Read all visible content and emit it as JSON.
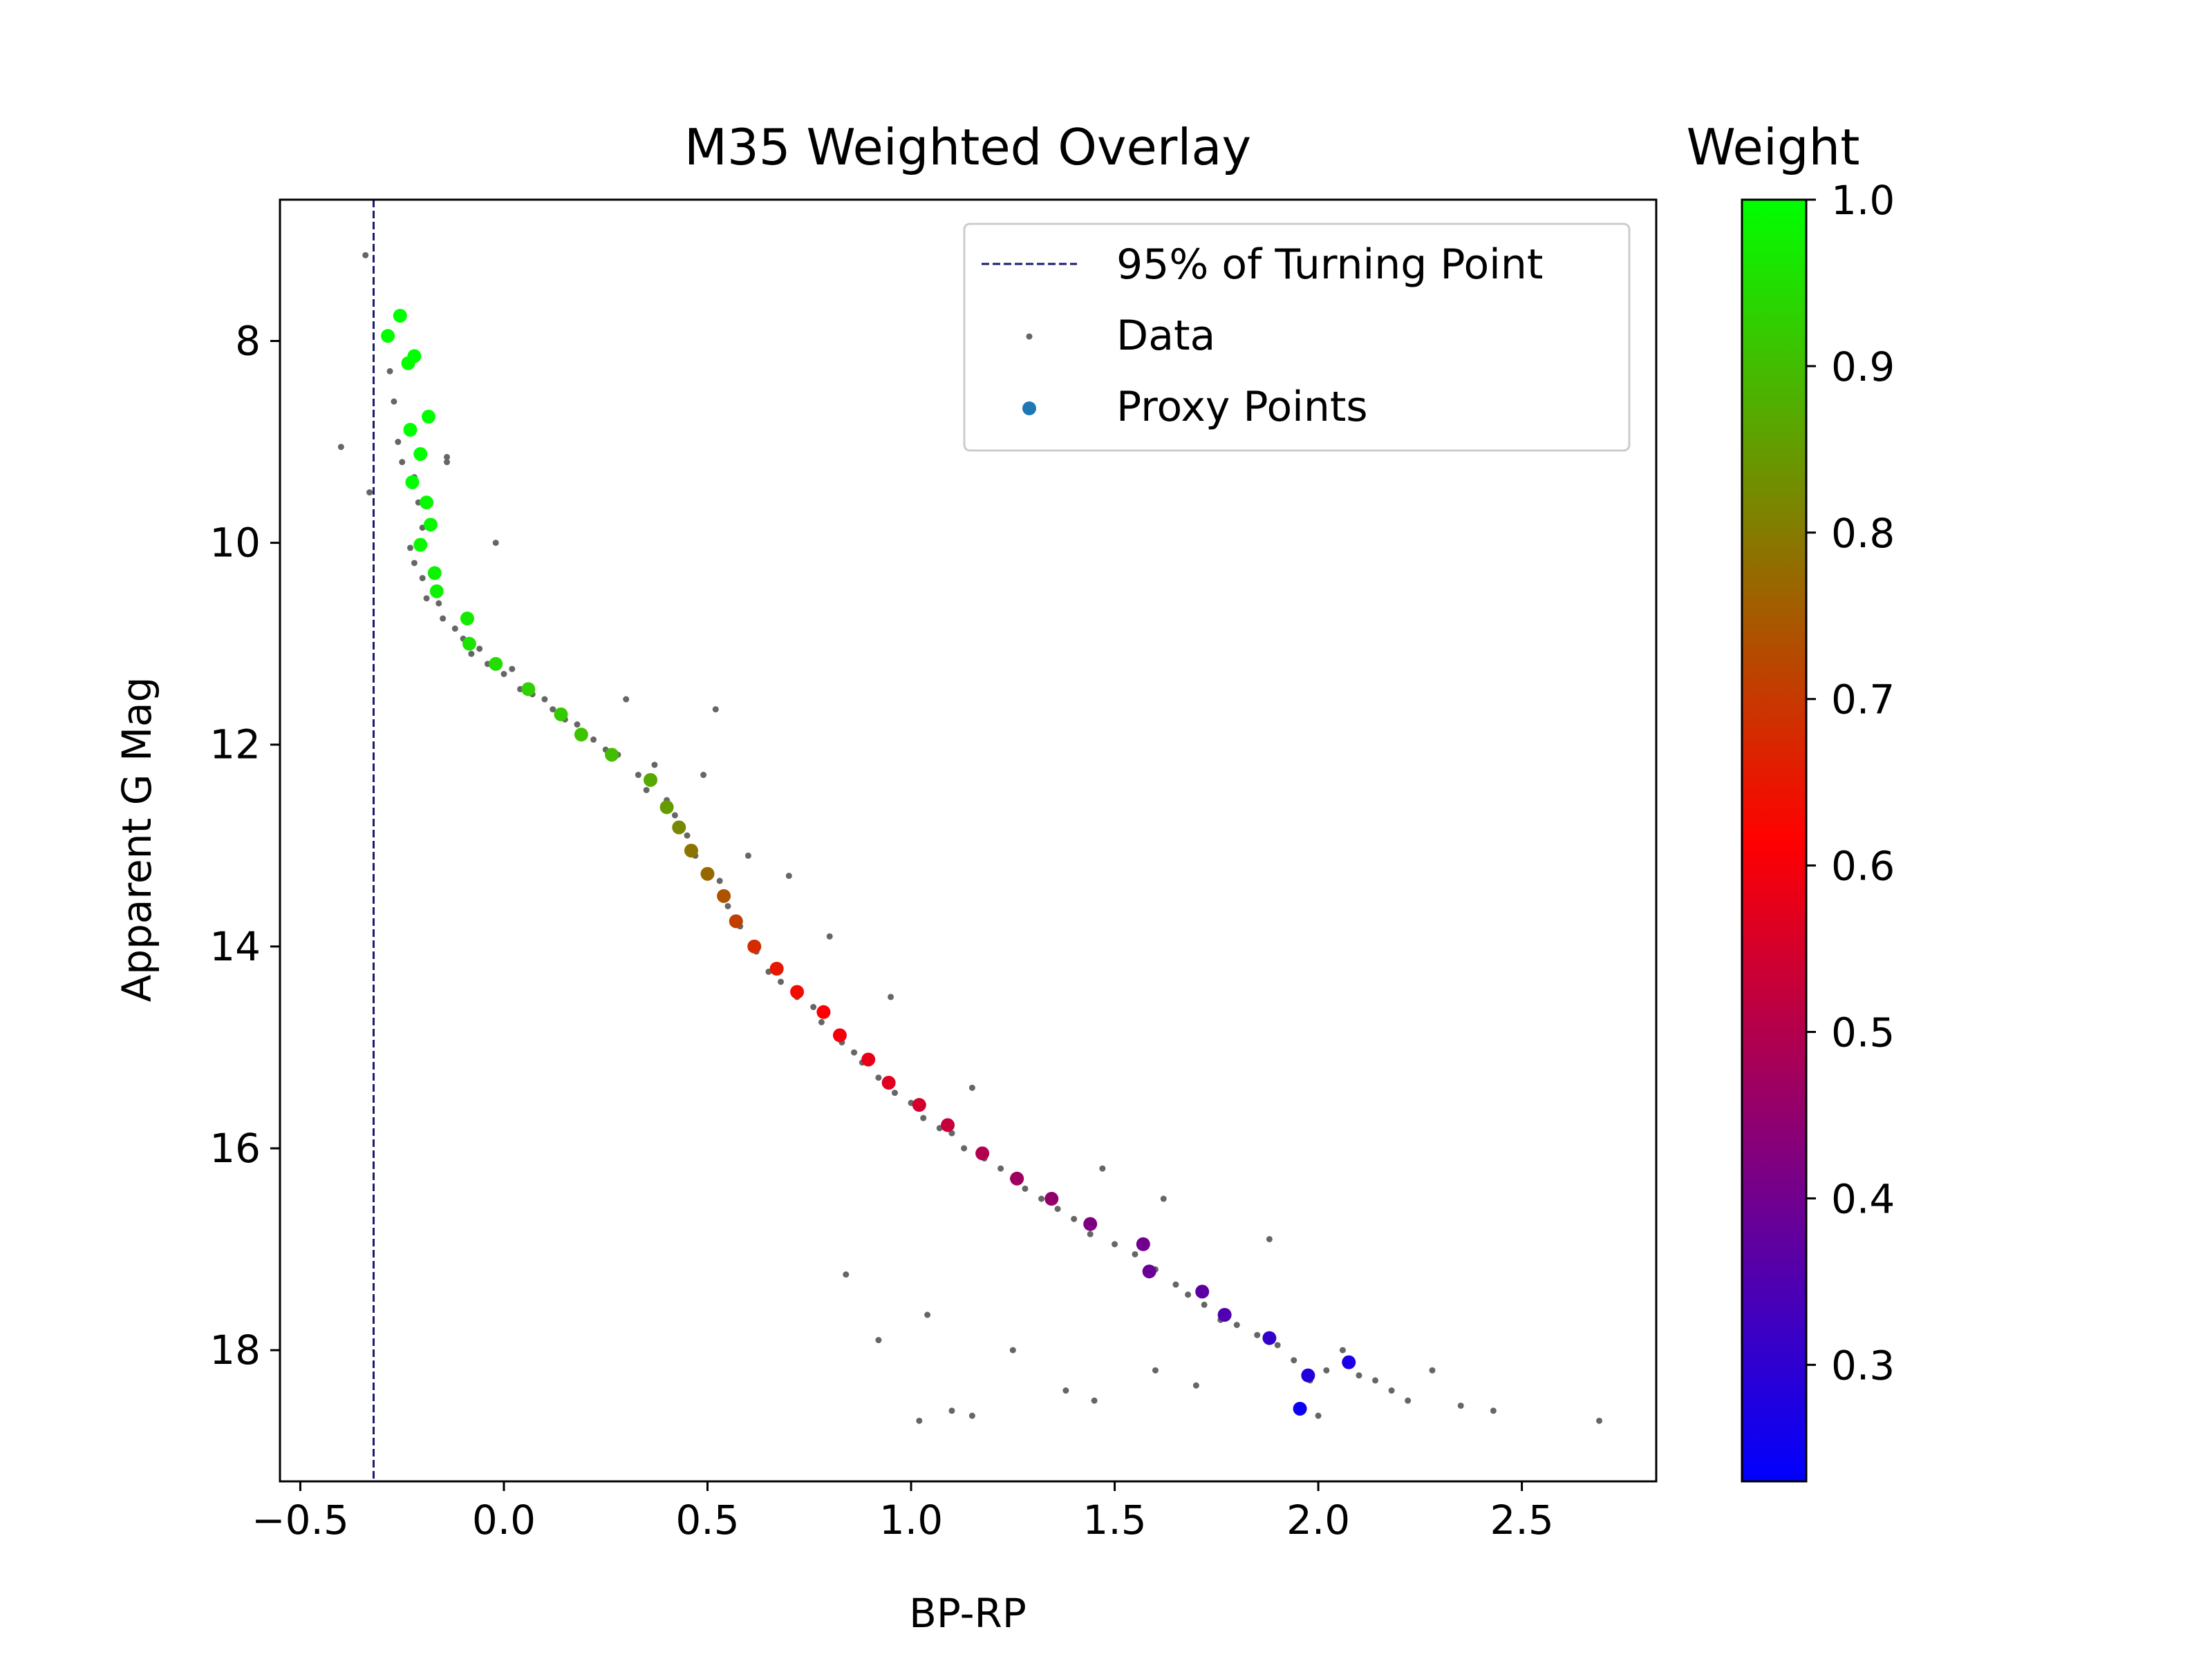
{
  "chart_data": {
    "type": "scatter",
    "title": "M35 Weighted Overlay",
    "xlabel": "BP-RP",
    "ylabel": "Apparent G Mag",
    "xlim": [
      -0.55,
      2.83
    ],
    "ylim": [
      19.3,
      6.6
    ],
    "y_inverted": true,
    "x_ticks": [
      -0.5,
      0.0,
      0.5,
      1.0,
      1.5,
      2.0,
      2.5
    ],
    "x_tick_labels": [
      "−0.5",
      "0.0",
      "0.5",
      "1.0",
      "1.5",
      "2.0",
      "2.5"
    ],
    "y_ticks": [
      8,
      10,
      12,
      14,
      16,
      18
    ],
    "y_tick_labels": [
      "8",
      "10",
      "12",
      "14",
      "16",
      "18"
    ],
    "grid": false,
    "legend": {
      "placement": "top-right",
      "entries": [
        "95% of Turning Point",
        "Data",
        "Proxy Points"
      ]
    },
    "vline": {
      "name": "95% of Turning Point",
      "x": -0.32,
      "color": "#1a1a6e",
      "style": "dashed"
    },
    "colorbar": {
      "title": "Weight",
      "min": 0.23,
      "max": 1.0,
      "ticks": [
        0.3,
        0.4,
        0.5,
        0.6,
        0.7,
        0.8,
        0.9,
        1.0
      ],
      "tick_labels": [
        "0.3",
        "0.4",
        "0.5",
        "0.6",
        "0.7",
        "0.8",
        "0.9",
        "1.0"
      ],
      "colormap": [
        "#0000ff",
        "#800080",
        "#ff0000",
        "#808000",
        "#00ff00"
      ]
    },
    "series": [
      {
        "name": "Data",
        "color": "#666666",
        "points": [
          [
            -0.34,
            7.15
          ],
          [
            -0.4,
            9.05
          ],
          [
            -0.33,
            9.5
          ],
          [
            -0.29,
            7.95
          ],
          [
            -0.28,
            8.3
          ],
          [
            -0.27,
            8.6
          ],
          [
            -0.26,
            9.0
          ],
          [
            -0.25,
            9.2
          ],
          [
            -0.22,
            9.35
          ],
          [
            -0.21,
            9.6
          ],
          [
            -0.2,
            9.85
          ],
          [
            -0.23,
            10.05
          ],
          [
            -0.22,
            10.2
          ],
          [
            -0.2,
            10.35
          ],
          [
            -0.19,
            10.55
          ],
          [
            -0.16,
            10.6
          ],
          [
            -0.14,
            9.15
          ],
          [
            -0.14,
            9.2
          ],
          [
            -0.15,
            10.75
          ],
          [
            -0.12,
            10.85
          ],
          [
            -0.1,
            10.95
          ],
          [
            -0.08,
            11.1
          ],
          [
            -0.06,
            11.05
          ],
          [
            -0.04,
            11.2
          ],
          [
            -0.02,
            10.0
          ],
          [
            0.0,
            11.3
          ],
          [
            0.02,
            11.25
          ],
          [
            0.04,
            11.45
          ],
          [
            0.07,
            11.5
          ],
          [
            0.1,
            11.55
          ],
          [
            0.12,
            11.65
          ],
          [
            0.15,
            11.75
          ],
          [
            0.18,
            11.8
          ],
          [
            0.22,
            11.95
          ],
          [
            0.25,
            12.05
          ],
          [
            0.28,
            12.1
          ],
          [
            0.3,
            11.55
          ],
          [
            0.33,
            12.3
          ],
          [
            0.35,
            12.45
          ],
          [
            0.37,
            12.2
          ],
          [
            0.4,
            12.55
          ],
          [
            0.42,
            12.7
          ],
          [
            0.45,
            12.9
          ],
          [
            0.47,
            13.1
          ],
          [
            0.49,
            12.3
          ],
          [
            0.52,
            11.65
          ],
          [
            0.53,
            13.35
          ],
          [
            0.55,
            13.6
          ],
          [
            0.58,
            13.8
          ],
          [
            0.6,
            13.1
          ],
          [
            0.62,
            14.05
          ],
          [
            0.65,
            14.25
          ],
          [
            0.68,
            14.35
          ],
          [
            0.7,
            13.3
          ],
          [
            0.72,
            14.5
          ],
          [
            0.76,
            14.6
          ],
          [
            0.78,
            14.75
          ],
          [
            0.8,
            13.9
          ],
          [
            0.83,
            14.95
          ],
          [
            0.86,
            15.05
          ],
          [
            0.88,
            15.15
          ],
          [
            0.92,
            15.3
          ],
          [
            0.95,
            14.5
          ],
          [
            0.96,
            15.45
          ],
          [
            1.0,
            15.55
          ],
          [
            1.03,
            15.7
          ],
          [
            1.07,
            15.8
          ],
          [
            1.1,
            15.85
          ],
          [
            1.13,
            16.0
          ],
          [
            1.15,
            15.4
          ],
          [
            1.18,
            16.1
          ],
          [
            1.22,
            16.2
          ],
          [
            1.25,
            16.3
          ],
          [
            1.28,
            16.4
          ],
          [
            1.32,
            16.5
          ],
          [
            1.36,
            16.6
          ],
          [
            1.4,
            16.7
          ],
          [
            1.44,
            16.85
          ],
          [
            1.47,
            16.2
          ],
          [
            1.5,
            16.95
          ],
          [
            1.55,
            17.05
          ],
          [
            1.6,
            17.2
          ],
          [
            1.62,
            16.5
          ],
          [
            1.65,
            17.35
          ],
          [
            1.68,
            17.45
          ],
          [
            1.72,
            17.55
          ],
          [
            1.76,
            17.7
          ],
          [
            1.8,
            17.75
          ],
          [
            1.85,
            17.85
          ],
          [
            1.88,
            16.9
          ],
          [
            1.9,
            17.95
          ],
          [
            1.94,
            18.1
          ],
          [
            1.98,
            18.3
          ],
          [
            2.02,
            18.2
          ],
          [
            2.06,
            18.0
          ],
          [
            2.1,
            18.25
          ],
          [
            2.14,
            18.3
          ],
          [
            2.18,
            18.4
          ],
          [
            2.22,
            18.5
          ],
          [
            2.28,
            18.2
          ],
          [
            2.35,
            18.55
          ],
          [
            2.43,
            18.6
          ],
          [
            2.69,
            18.7
          ],
          [
            0.92,
            17.9
          ],
          [
            1.02,
            18.7
          ],
          [
            1.1,
            18.6
          ],
          [
            1.15,
            18.65
          ],
          [
            1.38,
            18.4
          ],
          [
            1.45,
            18.5
          ],
          [
            1.04,
            17.65
          ],
          [
            0.84,
            17.25
          ],
          [
            1.25,
            18.0
          ],
          [
            1.6,
            18.2
          ],
          [
            1.7,
            18.35
          ],
          [
            2.0,
            18.65
          ]
        ]
      },
      {
        "name": "Proxy Points",
        "points": [
          [
            -0.255,
            7.75,
            1.0
          ],
          [
            -0.285,
            7.95,
            1.0
          ],
          [
            -0.22,
            8.15,
            1.0
          ],
          [
            -0.235,
            8.22,
            1.0
          ],
          [
            -0.185,
            8.75,
            1.0
          ],
          [
            -0.23,
            8.88,
            1.0
          ],
          [
            -0.205,
            9.12,
            1.0
          ],
          [
            -0.225,
            9.4,
            1.0
          ],
          [
            -0.19,
            9.6,
            0.99
          ],
          [
            -0.18,
            9.82,
            0.99
          ],
          [
            -0.205,
            10.02,
            0.99
          ],
          [
            -0.17,
            10.3,
            0.98
          ],
          [
            -0.165,
            10.48,
            0.98
          ],
          [
            -0.09,
            10.75,
            0.97
          ],
          [
            -0.085,
            11.0,
            0.96
          ],
          [
            -0.02,
            11.2,
            0.95
          ],
          [
            0.06,
            11.45,
            0.93
          ],
          [
            0.14,
            11.7,
            0.92
          ],
          [
            0.19,
            11.9,
            0.91
          ],
          [
            0.265,
            12.1,
            0.9
          ],
          [
            0.36,
            12.35,
            0.87
          ],
          [
            0.4,
            12.62,
            0.85
          ],
          [
            0.43,
            12.82,
            0.82
          ],
          [
            0.46,
            13.05,
            0.79
          ],
          [
            0.5,
            13.28,
            0.77
          ],
          [
            0.54,
            13.5,
            0.74
          ],
          [
            0.57,
            13.75,
            0.71
          ],
          [
            0.615,
            14.0,
            0.68
          ],
          [
            0.67,
            14.22,
            0.65
          ],
          [
            0.72,
            14.45,
            0.63
          ],
          [
            0.785,
            14.65,
            0.61
          ],
          [
            0.825,
            14.88,
            0.6
          ],
          [
            0.895,
            15.12,
            0.58
          ],
          [
            0.945,
            15.35,
            0.57
          ],
          [
            1.02,
            15.57,
            0.55
          ],
          [
            1.09,
            15.77,
            0.53
          ],
          [
            1.175,
            16.05,
            0.5
          ],
          [
            1.26,
            16.3,
            0.47
          ],
          [
            1.345,
            16.5,
            0.45
          ],
          [
            1.44,
            16.75,
            0.42
          ],
          [
            1.57,
            16.95,
            0.4
          ],
          [
            1.585,
            17.22,
            0.39
          ],
          [
            1.715,
            17.42,
            0.37
          ],
          [
            1.77,
            17.65,
            0.35
          ],
          [
            1.88,
            17.88,
            0.31
          ],
          [
            1.975,
            18.25,
            0.28
          ],
          [
            2.075,
            18.12,
            0.27
          ],
          [
            1.955,
            18.58,
            0.25
          ]
        ]
      }
    ]
  }
}
